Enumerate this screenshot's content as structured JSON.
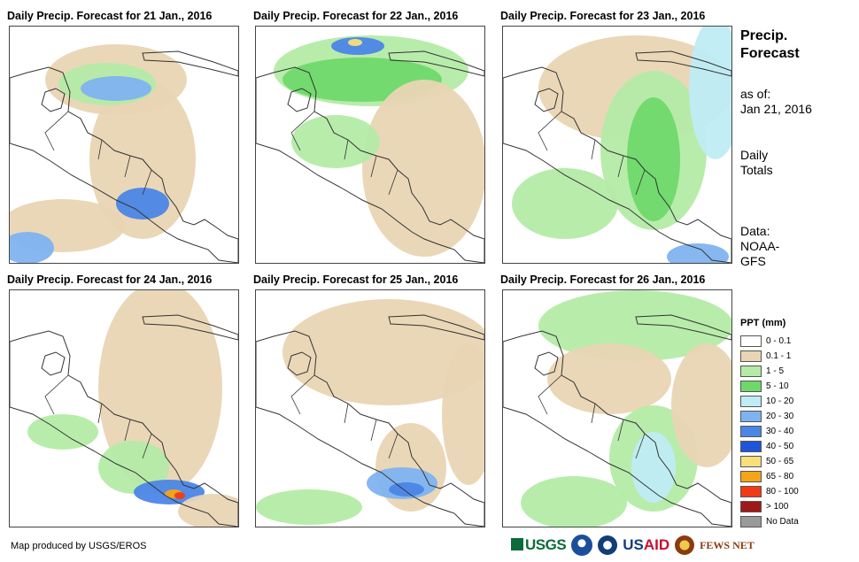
{
  "panels": [
    {
      "title": "Daily Precip. Forecast for 21 Jan., 2016"
    },
    {
      "title": "Daily Precip. Forecast for 22 Jan., 2016"
    },
    {
      "title": "Daily Precip. Forecast for 23 Jan., 2016"
    },
    {
      "title": "Daily Precip. Forecast for 24 Jan., 2016"
    },
    {
      "title": "Daily Precip. Forecast for 25 Jan., 2016"
    },
    {
      "title": "Daily Precip. Forecast for 26 Jan., 2016"
    }
  ],
  "side": {
    "title_line1": "Precip.",
    "title_line2": "Forecast",
    "as_of_label": "as of:",
    "as_of_date": "Jan 21, 2016",
    "totals_line1": "Daily",
    "totals_line2": "Totals",
    "data_line1": "Data:",
    "data_line2": "NOAA-",
    "data_line3": "GFS"
  },
  "legend": {
    "title": "PPT (mm)",
    "items": [
      {
        "label": "0 - 0.1",
        "color": "#ffffff"
      },
      {
        "label": "0.1 - 1",
        "color": "#e9d5b3"
      },
      {
        "label": "1 - 5",
        "color": "#b4eba7"
      },
      {
        "label": "5 - 10",
        "color": "#6ed96a"
      },
      {
        "label": "10 - 20",
        "color": "#bfecf4"
      },
      {
        "label": "20 - 30",
        "color": "#7fb3f0"
      },
      {
        "label": "30 - 40",
        "color": "#4b86e6"
      },
      {
        "label": "40 - 50",
        "color": "#1f55d9"
      },
      {
        "label": "50 - 65",
        "color": "#f7e07a"
      },
      {
        "label": "65 - 80",
        "color": "#f5a418"
      },
      {
        "label": "80 - 100",
        "color": "#f23b16"
      },
      {
        "label": "> 100",
        "color": "#a01818"
      },
      {
        "label": "No Data",
        "color": "#9a9a9a"
      }
    ]
  },
  "credit": "Map produced by USGS/EROS",
  "logos": {
    "usgs": "USGS",
    "usaid_a": "US",
    "usaid_b": "AID",
    "fews": "FEWS NET"
  }
}
